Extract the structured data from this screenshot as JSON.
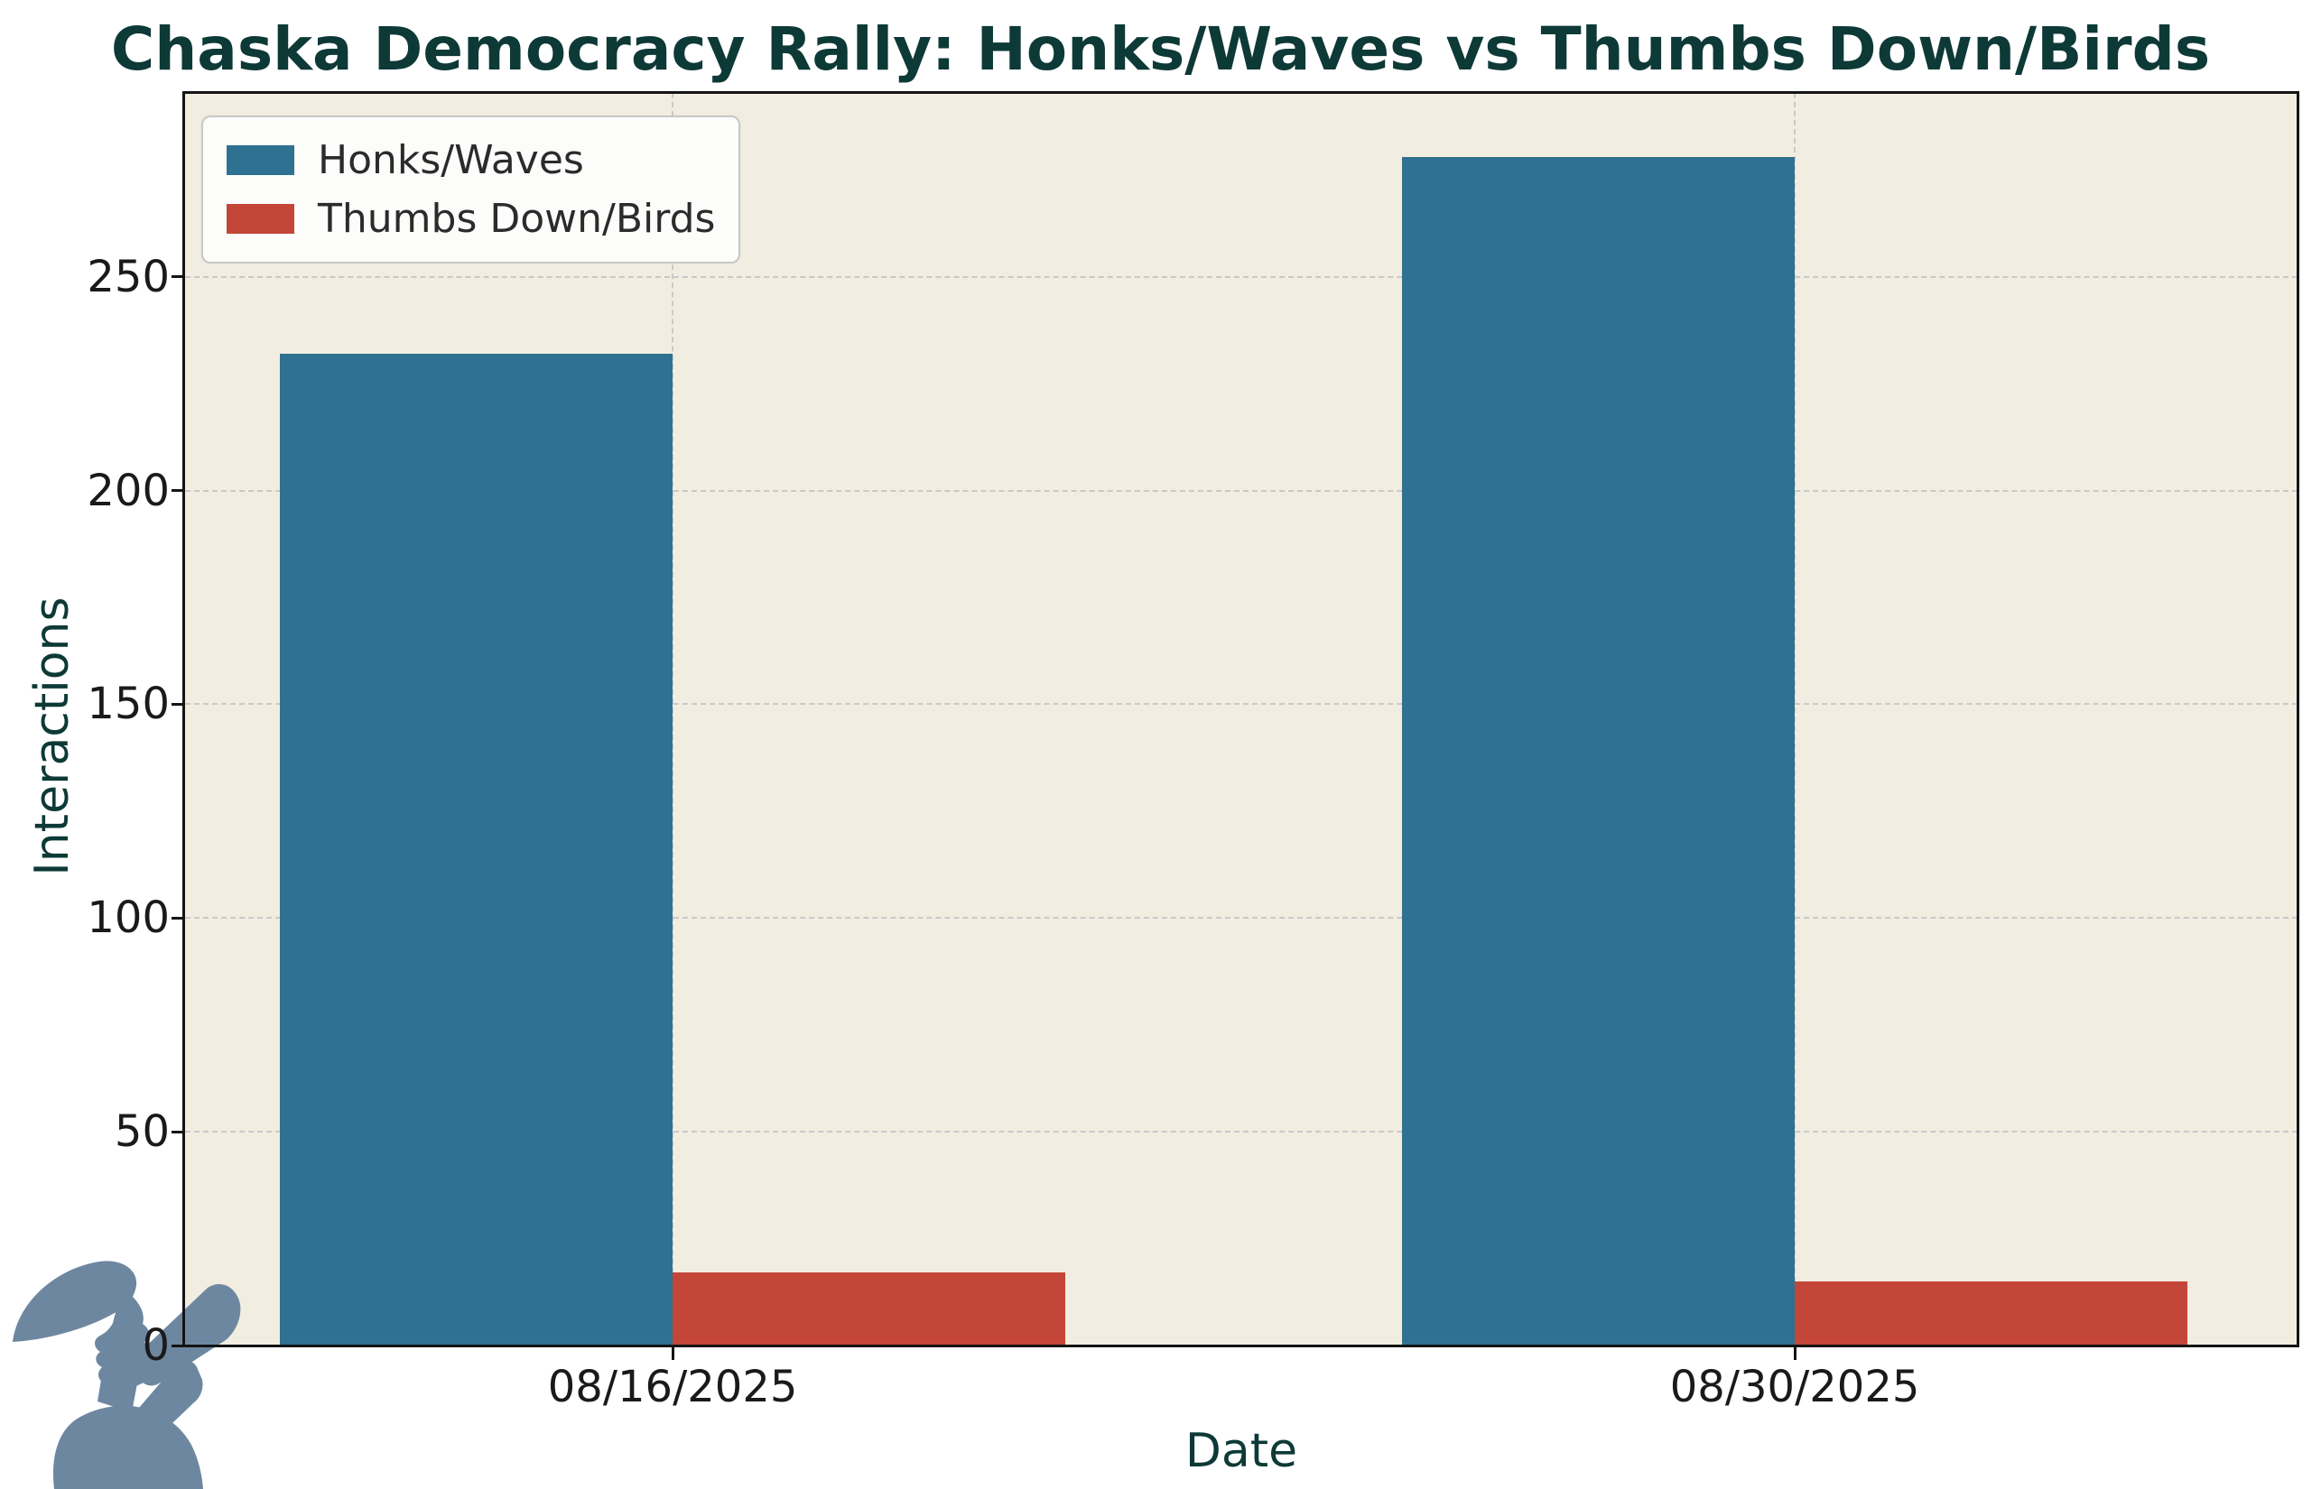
{
  "title": "Chaska Democracy Rally: Honks/Waves vs Thumbs Down/Birds",
  "chart_data": {
    "type": "bar",
    "title": "Chaska Democracy Rally: Honks/Waves vs Thumbs Down/Birds",
    "categories": [
      "08/16/2025",
      "08/30/2025"
    ],
    "series": [
      {
        "name": "Honks/Waves",
        "color": "#2f7190",
        "values": [
          232,
          278
        ]
      },
      {
        "name": "Thumbs Down/Birds",
        "color": "#c44638",
        "values": [
          17,
          15
        ]
      }
    ],
    "xlabel": "Date",
    "ylabel": "Interactions",
    "ylim": [
      0,
      293
    ],
    "yticks": [
      0,
      50,
      100,
      150,
      200,
      250
    ],
    "grid": true,
    "grid_style": "dashed",
    "legend_position": "upper-left",
    "plot_background": "#f1ede0",
    "title_color": "#0d3936",
    "axis_label_color": "#0d3936",
    "tick_label_color": "#1a1a1a"
  },
  "watermark": {
    "name": "town crier silhouette shouting into megaphone",
    "color": "#6d87a0"
  }
}
